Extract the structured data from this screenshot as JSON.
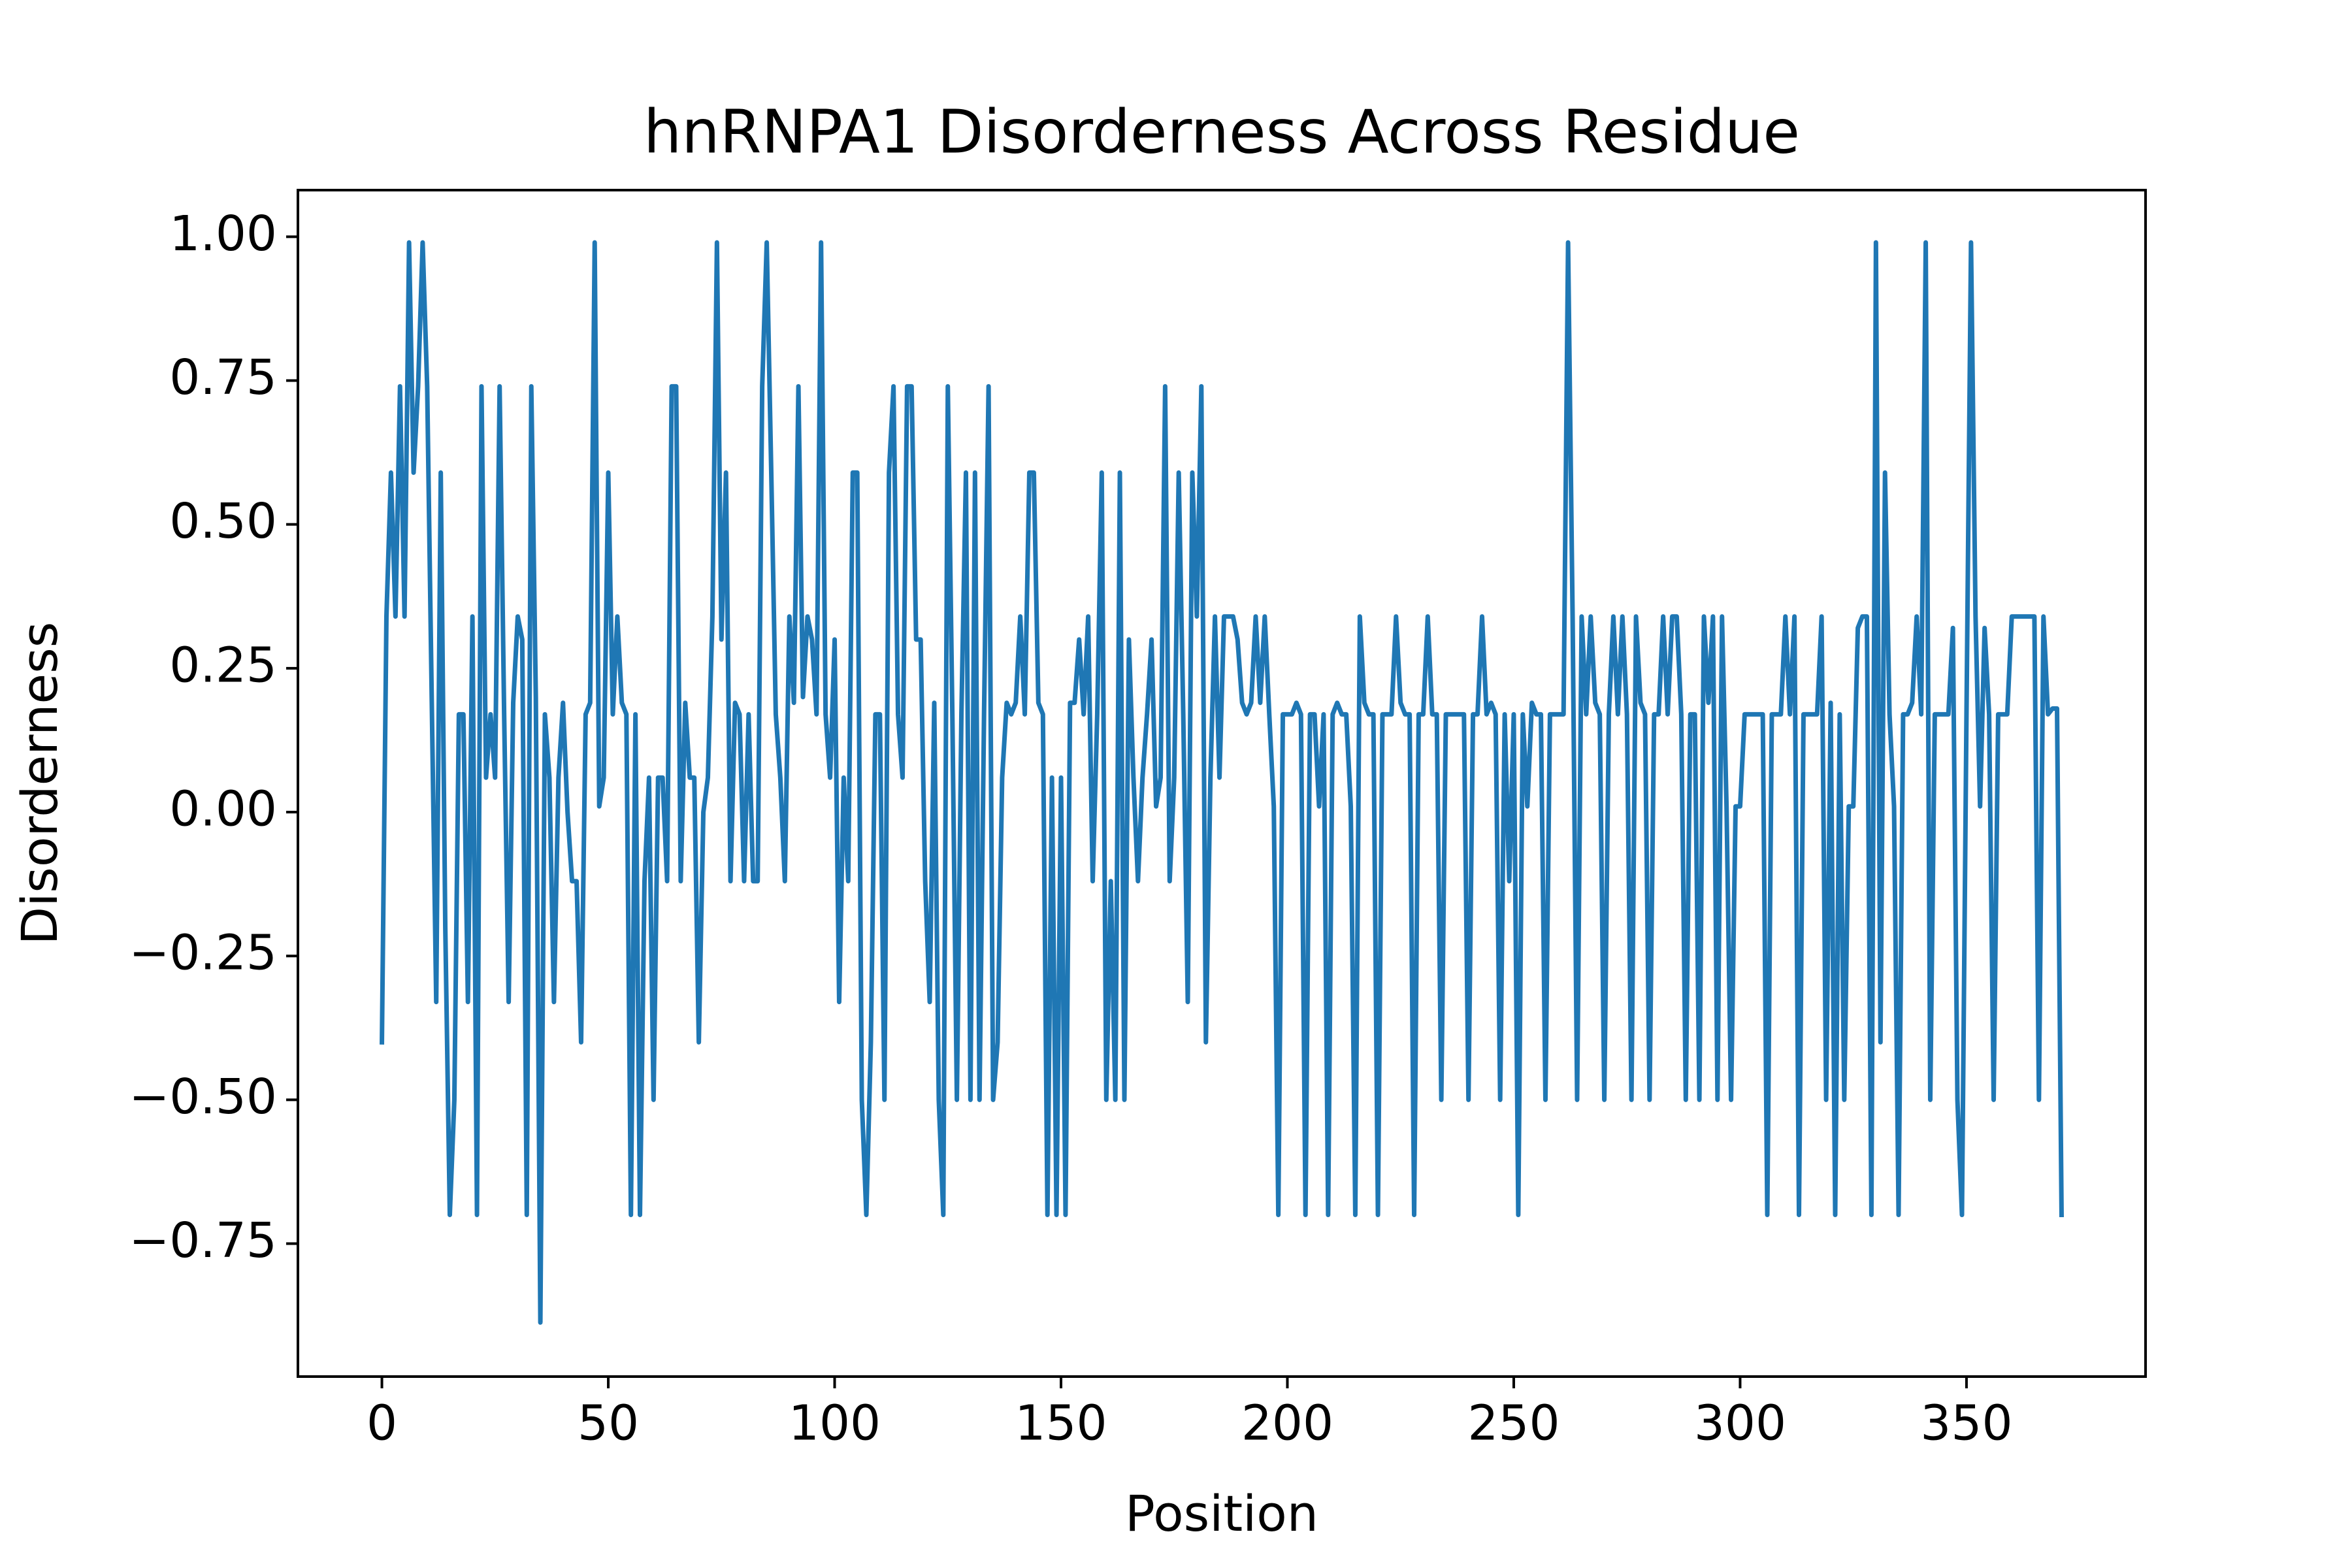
{
  "chart_data": {
    "type": "line",
    "title": "hnRNPA1 Disorderness Across Residue",
    "xlabel": "Position",
    "ylabel": "Disorderness",
    "color": "#1f77b4",
    "x": [
      0,
      1,
      2,
      3,
      4,
      5,
      6,
      7,
      8,
      9,
      10,
      11,
      12,
      13,
      14,
      15,
      16,
      17,
      18,
      19,
      20,
      21,
      22,
      23,
      24,
      25,
      26,
      27,
      28,
      29,
      30,
      31,
      32,
      33,
      34,
      35,
      36,
      37,
      38,
      39,
      40,
      41,
      42,
      43,
      44,
      45,
      46,
      47,
      48,
      49,
      50,
      51,
      52,
      53,
      54,
      55,
      56,
      57,
      58,
      59,
      60,
      61,
      62,
      63,
      64,
      65,
      66,
      67,
      68,
      69,
      70,
      71,
      72,
      73,
      74,
      75,
      76,
      77,
      78,
      79,
      80,
      81,
      82,
      83,
      84,
      85,
      86,
      87,
      88,
      89,
      90,
      91,
      92,
      93,
      94,
      95,
      96,
      97,
      98,
      99,
      100,
      101,
      102,
      103,
      104,
      105,
      106,
      107,
      108,
      109,
      110,
      111,
      112,
      113,
      114,
      115,
      116,
      117,
      118,
      119,
      120,
      121,
      122,
      123,
      124,
      125,
      126,
      127,
      128,
      129,
      130,
      131,
      132,
      133,
      134,
      135,
      136,
      137,
      138,
      139,
      140,
      141,
      142,
      143,
      144,
      145,
      146,
      147,
      148,
      149,
      150,
      151,
      152,
      153,
      154,
      155,
      156,
      157,
      158,
      159,
      160,
      161,
      162,
      163,
      164,
      165,
      166,
      167,
      168,
      169,
      170,
      171,
      172,
      173,
      174,
      175,
      176,
      177,
      178,
      179,
      180,
      181,
      182,
      183,
      184,
      185,
      186,
      187,
      188,
      189,
      190,
      191,
      192,
      193,
      194,
      195,
      196,
      197,
      198,
      199,
      200,
      201,
      202,
      203,
      204,
      205,
      206,
      207,
      208,
      209,
      210,
      211,
      212,
      213,
      214,
      215,
      216,
      217,
      218,
      219,
      220,
      221,
      222,
      223,
      224,
      225,
      226,
      227,
      228,
      229,
      230,
      231,
      232,
      233,
      234,
      235,
      236,
      237,
      238,
      239,
      240,
      241,
      242,
      243,
      244,
      245,
      246,
      247,
      248,
      249,
      250,
      251,
      252,
      253,
      254,
      255,
      256,
      257,
      258,
      259,
      260,
      261,
      262,
      263,
      264,
      265,
      266,
      267,
      268,
      269,
      270,
      271,
      272,
      273,
      274,
      275,
      276,
      277,
      278,
      279,
      280,
      281,
      282,
      283,
      284,
      285,
      286,
      287,
      288,
      289,
      290,
      291,
      292,
      293,
      294,
      295,
      296,
      297,
      298,
      299,
      300,
      301,
      302,
      303,
      304,
      305,
      306,
      307,
      308,
      309,
      310,
      311,
      312,
      313,
      314,
      315,
      316,
      317,
      318,
      319,
      320,
      321,
      322,
      323,
      324,
      325,
      326,
      327,
      328,
      329,
      330,
      331,
      332,
      333,
      334,
      335,
      336,
      337,
      338,
      339,
      340,
      341,
      342,
      343,
      344,
      345,
      346,
      347,
      348,
      349,
      350,
      351,
      352,
      353,
      354,
      355,
      356,
      357,
      358,
      359,
      360,
      361,
      362,
      363,
      364,
      365,
      366,
      367,
      368,
      369,
      370,
      371
    ],
    "values": [
      -0.4,
      0.34,
      0.59,
      0.34,
      0.74,
      0.34,
      0.99,
      0.59,
      0.74,
      0.99,
      0.74,
      0.2,
      -0.33,
      0.59,
      -0.2,
      -0.7,
      -0.5,
      0.17,
      0.17,
      -0.33,
      0.34,
      -0.7,
      0.74,
      0.06,
      0.17,
      0.06,
      0.74,
      0.17,
      -0.33,
      0.19,
      0.34,
      0.3,
      -0.7,
      0.74,
      0.2,
      -0.887,
      0.17,
      0.06,
      -0.33,
      0.06,
      0.19,
      0.0,
      -0.12,
      -0.12,
      -0.4,
      0.17,
      0.19,
      0.99,
      0.01,
      0.06,
      0.59,
      0.17,
      0.34,
      0.19,
      0.17,
      -0.7,
      0.17,
      -0.7,
      -0.12,
      0.06,
      -0.5,
      0.06,
      0.06,
      -0.12,
      0.74,
      0.74,
      -0.12,
      0.19,
      0.06,
      0.06,
      -0.4,
      0.0,
      0.06,
      0.34,
      0.99,
      0.3,
      0.59,
      -0.12,
      0.19,
      0.17,
      -0.12,
      0.17,
      -0.12,
      -0.12,
      0.74,
      0.99,
      0.59,
      0.17,
      0.06,
      -0.12,
      0.34,
      0.19,
      0.74,
      0.2,
      0.34,
      0.3,
      0.17,
      0.99,
      0.17,
      0.06,
      0.3,
      -0.33,
      0.06,
      -0.12,
      0.59,
      0.59,
      -0.5,
      -0.7,
      -0.4,
      0.17,
      0.17,
      -0.5,
      0.59,
      0.74,
      0.17,
      0.06,
      0.74,
      0.74,
      0.3,
      0.3,
      -0.12,
      -0.33,
      0.19,
      -0.5,
      -0.7,
      0.74,
      0.17,
      -0.5,
      0.17,
      0.59,
      -0.5,
      0.59,
      -0.5,
      0.17,
      0.74,
      -0.5,
      -0.4,
      0.06,
      0.19,
      0.17,
      0.19,
      0.34,
      0.17,
      0.59,
      0.59,
      0.19,
      0.17,
      -0.7,
      0.06,
      -0.7,
      0.06,
      -0.7,
      0.19,
      0.19,
      0.3,
      0.17,
      0.34,
      -0.12,
      0.17,
      0.59,
      -0.5,
      -0.12,
      -0.5,
      0.59,
      -0.5,
      0.3,
      0.06,
      -0.12,
      0.06,
      0.17,
      0.3,
      0.01,
      0.06,
      0.74,
      -0.12,
      0.06,
      0.59,
      0.17,
      -0.33,
      0.59,
      0.34,
      0.74,
      -0.4,
      0.06,
      0.34,
      0.06,
      0.34,
      0.34,
      0.34,
      0.3,
      0.19,
      0.17,
      0.19,
      0.34,
      0.19,
      0.34,
      0.17,
      0.01,
      -0.7,
      0.17,
      0.17,
      0.17,
      0.19,
      0.17,
      -0.7,
      0.17,
      0.17,
      0.01,
      0.17,
      -0.7,
      0.17,
      0.19,
      0.17,
      0.17,
      0.01,
      -0.7,
      0.34,
      0.19,
      0.17,
      0.17,
      -0.7,
      0.17,
      0.17,
      0.17,
      0.34,
      0.19,
      0.17,
      0.17,
      -0.7,
      0.17,
      0.17,
      0.34,
      0.17,
      0.17,
      -0.5,
      0.17,
      0.17,
      0.17,
      0.17,
      0.17,
      -0.5,
      0.17,
      0.17,
      0.34,
      0.17,
      0.19,
      0.17,
      -0.5,
      0.17,
      -0.12,
      0.17,
      -0.7,
      0.17,
      0.01,
      0.19,
      0.17,
      0.17,
      -0.5,
      0.17,
      0.17,
      0.17,
      0.17,
      0.99,
      0.34,
      -0.5,
      0.34,
      0.17,
      0.34,
      0.19,
      0.17,
      -0.5,
      0.17,
      0.34,
      0.17,
      0.34,
      0.17,
      -0.5,
      0.34,
      0.19,
      0.17,
      -0.5,
      0.17,
      0.17,
      0.34,
      0.17,
      0.34,
      0.34,
      0.17,
      -0.5,
      0.17,
      0.17,
      -0.5,
      0.34,
      0.19,
      0.34,
      -0.5,
      0.34,
      0.01,
      -0.5,
      0.01,
      0.01,
      0.17,
      0.17,
      0.17,
      0.17,
      0.17,
      -0.7,
      0.17,
      0.17,
      0.17,
      0.34,
      0.17,
      0.34,
      -0.7,
      0.17,
      0.17,
      0.17,
      0.17,
      0.34,
      -0.5,
      0.19,
      -0.7,
      0.17,
      -0.5,
      0.01,
      0.01,
      0.32,
      0.34,
      0.34,
      -0.7,
      0.99,
      -0.4,
      0.59,
      0.17,
      0.01,
      -0.7,
      0.17,
      0.17,
      0.19,
      0.34,
      0.17,
      0.99,
      -0.5,
      0.17,
      0.17,
      0.17,
      0.17,
      0.32,
      -0.5,
      -0.7,
      0.17,
      0.99,
      0.34,
      0.01,
      0.32,
      0.17,
      -0.5,
      0.17,
      0.17,
      0.17,
      0.34,
      0.34,
      0.34,
      0.34,
      0.34,
      0.34,
      -0.5,
      0.34,
      0.17,
      0.18,
      0.18,
      -0.7
    ],
    "xlim": [
      -18.55,
      389.55
    ],
    "ylim": [
      -0.981,
      1.081
    ],
    "xticks": [
      0,
      50,
      100,
      150,
      200,
      250,
      300,
      350
    ],
    "yticks": [
      {
        "value": -0.75,
        "label": "−0.75"
      },
      {
        "value": -0.5,
        "label": "−0.50"
      },
      {
        "value": -0.25,
        "label": "−0.25"
      },
      {
        "value": 0,
        "label": "0.00"
      },
      {
        "value": 0.25,
        "label": "0.25"
      },
      {
        "value": 0.5,
        "label": "0.50"
      },
      {
        "value": 0.75,
        "label": "0.75"
      },
      {
        "value": 1,
        "label": "1.00"
      }
    ],
    "grid": false
  }
}
